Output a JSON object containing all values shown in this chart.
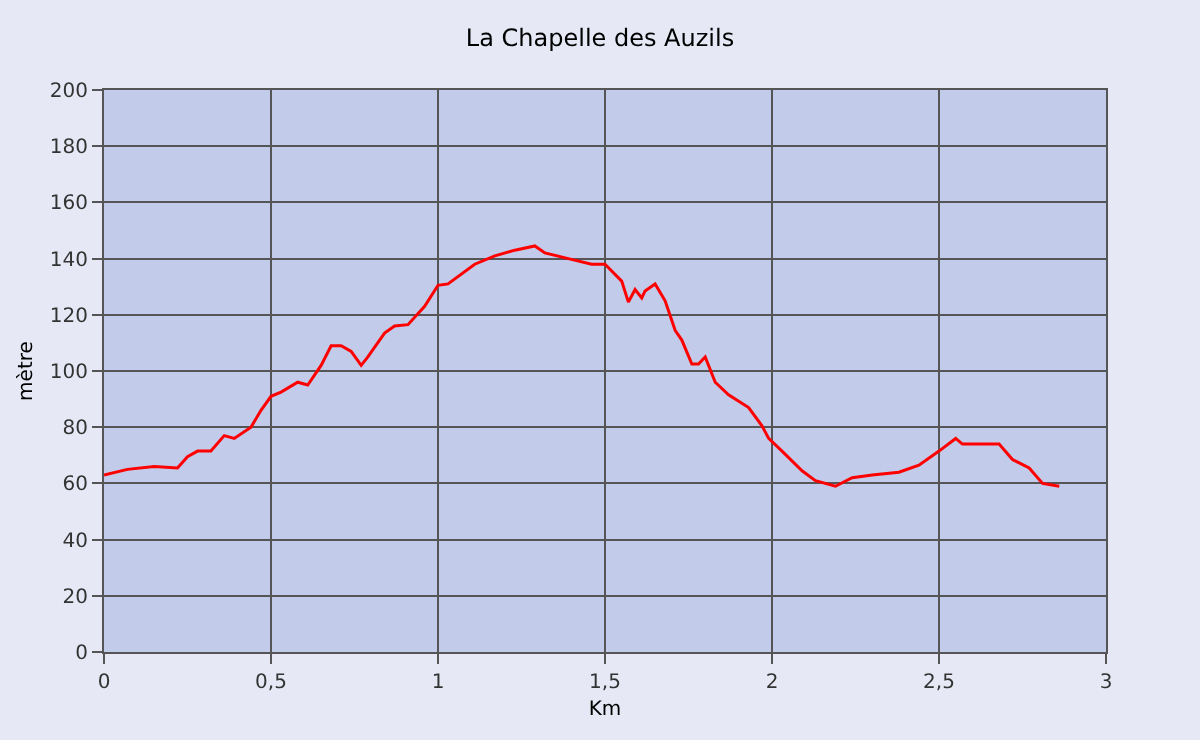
{
  "chart_data": {
    "type": "line",
    "title": "La Chapelle des Auzils",
    "xlabel": "Km",
    "ylabel": "mètre",
    "x": [
      0.0,
      0.07,
      0.15,
      0.22,
      0.25,
      0.28,
      0.32,
      0.36,
      0.39,
      0.44,
      0.47,
      0.5,
      0.53,
      0.58,
      0.61,
      0.65,
      0.68,
      0.71,
      0.74,
      0.77,
      0.79,
      0.84,
      0.87,
      0.91,
      0.96,
      1.0,
      1.03,
      1.11,
      1.17,
      1.23,
      1.29,
      1.32,
      1.39,
      1.46,
      1.5,
      1.55,
      1.57,
      1.59,
      1.61,
      1.62,
      1.65,
      1.68,
      1.71,
      1.73,
      1.76,
      1.78,
      1.8,
      1.83,
      1.87,
      1.93,
      1.97,
      1.99,
      2.03,
      2.09,
      2.13,
      2.19,
      2.24,
      2.3,
      2.38,
      2.44,
      2.5,
      2.55,
      2.57,
      2.68,
      2.72,
      2.77,
      2.81,
      2.86
    ],
    "series": [
      {
        "color": "#ff0000",
        "values": [
          63,
          65,
          66,
          65.5,
          69.5,
          71.5,
          71.5,
          77,
          76,
          80,
          86,
          91,
          92.5,
          96,
          95,
          102,
          109,
          109,
          107,
          102,
          105,
          113.5,
          116,
          116.5,
          123,
          130.5,
          131,
          138,
          141,
          143,
          144.5,
          142,
          140,
          138,
          138,
          132,
          124.5,
          129,
          126,
          128.5,
          131,
          125,
          114.5,
          111,
          102.5,
          102.5,
          105,
          96,
          91.5,
          87,
          80.5,
          76,
          71.5,
          64.5,
          61,
          59,
          62,
          63,
          64,
          66.5,
          71.5,
          76,
          74,
          74,
          68.5,
          65.5,
          60,
          59
        ]
      }
    ],
    "xlim": [
      0,
      3
    ],
    "xticks": [
      0,
      {
        "value": 0.5,
        "label": "0,5"
      },
      1,
      {
        "value": 1.5,
        "label": "1,5"
      },
      2,
      {
        "value": 2.5,
        "label": "2,5"
      },
      3
    ],
    "ylim": [
      0,
      200
    ],
    "yticks": [
      0,
      20,
      40,
      60,
      80,
      100,
      120,
      140,
      160,
      180,
      200
    ],
    "grid": true,
    "marker": "none",
    "line_style": "solid"
  }
}
